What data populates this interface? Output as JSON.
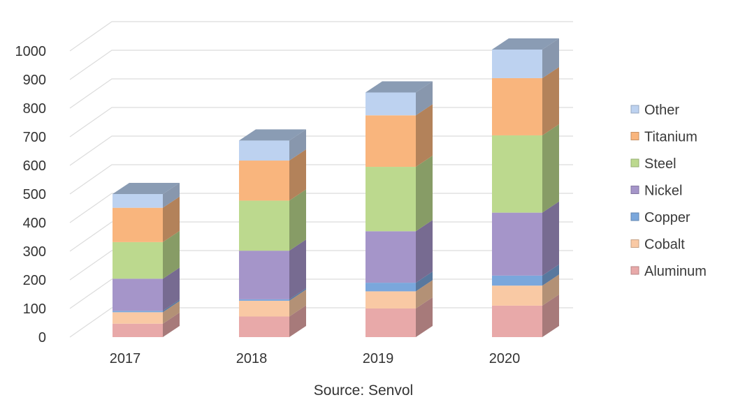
{
  "chart_data": {
    "type": "bar",
    "stacked": true,
    "three_d": true,
    "categories": [
      "2017",
      "2018",
      "2019",
      "2020"
    ],
    "series": [
      {
        "name": "Aluminum",
        "color": "#e8a9a9",
        "values": [
          47,
          72,
          100,
          110
        ]
      },
      {
        "name": "Cobalt",
        "color": "#f9c9a4",
        "values": [
          40,
          55,
          60,
          70
        ]
      },
      {
        "name": "Copper",
        "color": "#7aa7dc",
        "values": [
          5,
          5,
          30,
          35
        ]
      },
      {
        "name": "Nickel",
        "color": "#a595c9",
        "values": [
          112,
          170,
          180,
          220
        ]
      },
      {
        "name": "Steel",
        "color": "#bcd98e",
        "values": [
          128,
          175,
          225,
          270
        ]
      },
      {
        "name": "Titanium",
        "color": "#f9b57d",
        "values": [
          120,
          140,
          180,
          200
        ]
      },
      {
        "name": "Other",
        "color": "#bdd2f0",
        "values": [
          48,
          70,
          80,
          100
        ]
      }
    ],
    "yticks": [
      0,
      100,
      200,
      300,
      400,
      500,
      600,
      700,
      800,
      900,
      1000
    ],
    "ylim": [
      0,
      1000
    ],
    "grid": true,
    "legend_position": "right",
    "title": "",
    "xlabel": "",
    "ylabel": ""
  },
  "source_label": "Source: Senvol"
}
